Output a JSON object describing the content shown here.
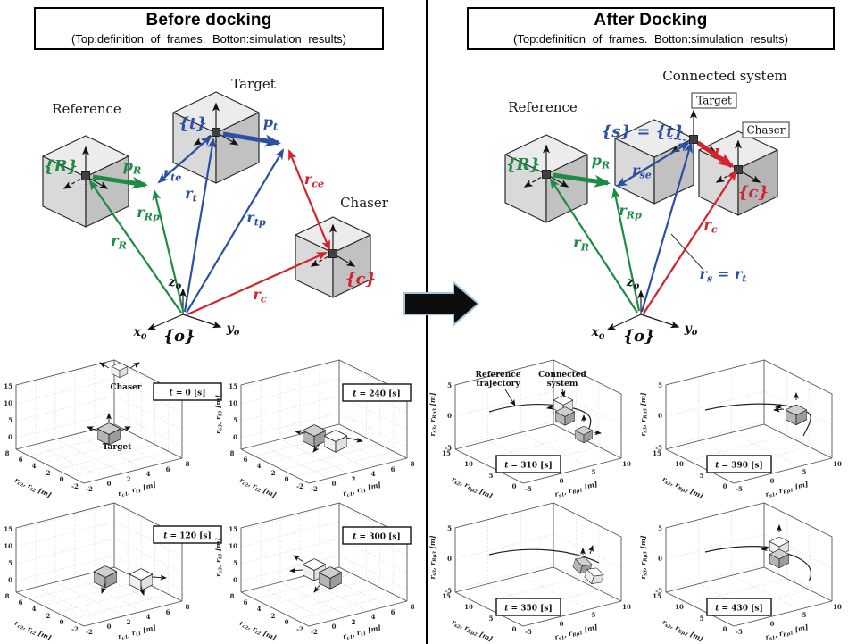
{
  "colors": {
    "green": "#1e8b45",
    "blue": "#2b4fa3",
    "red": "#d5222b",
    "arrow_fill": "#0d0d0d",
    "arrow_outline": "#a9c4d8"
  },
  "left": {
    "title": "Before docking",
    "subtitle": "(Top:definition of frames. Botton:simulation results)",
    "diagram": {
      "reference": "Reference",
      "target": "Target",
      "chaser": "Chaser",
      "frame_R": "{R}",
      "frame_t": "{t}",
      "frame_c": "{c}",
      "frame_o": "{o}",
      "pR": [
        {
          "t": "p"
        },
        {
          "t": "R",
          "sub": true
        }
      ],
      "rRp": [
        {
          "t": "r"
        },
        {
          "t": "Rp",
          "sub": true
        }
      ],
      "rR": [
        {
          "t": "r"
        },
        {
          "t": "R",
          "sub": true
        }
      ],
      "pt": [
        {
          "t": "p"
        },
        {
          "t": "t",
          "sub": true
        }
      ],
      "rte": [
        {
          "t": "r"
        },
        {
          "t": "te",
          "sub": true
        }
      ],
      "rt": [
        {
          "t": "r"
        },
        {
          "t": "t",
          "sub": true
        }
      ],
      "rtp": [
        {
          "t": "r"
        },
        {
          "t": "tp",
          "sub": true
        }
      ],
      "rce": [
        {
          "t": "r"
        },
        {
          "t": "ce",
          "sub": true
        }
      ],
      "rc": [
        {
          "t": "r"
        },
        {
          "t": "c",
          "sub": true
        }
      ],
      "xo": [
        {
          "t": "x",
          "i": true
        },
        {
          "t": "o",
          "sub": true
        }
      ],
      "yo": [
        {
          "t": "y",
          "i": true
        },
        {
          "t": "o",
          "sub": true
        }
      ],
      "zo": [
        {
          "t": "z",
          "i": true
        },
        {
          "t": "o",
          "sub": true
        }
      ]
    },
    "axes": {
      "zticks": [
        "15",
        "10",
        "5",
        "0"
      ],
      "yticks": [
        "8",
        "6",
        "4",
        "2",
        "0",
        "-2"
      ],
      "xticks": [
        "-2",
        "0",
        "2",
        "4",
        "6",
        "8"
      ],
      "zlabel": [
        {
          "t": "r"
        },
        {
          "t": "c3",
          "sub": true
        },
        {
          "t": ", "
        },
        {
          "t": "r"
        },
        {
          "t": "t3",
          "sub": true
        },
        {
          "t": " [m]"
        }
      ],
      "ylabel": [
        {
          "t": "r"
        },
        {
          "t": "c2",
          "sub": true
        },
        {
          "t": ", "
        },
        {
          "t": "r"
        },
        {
          "t": "t2",
          "sub": true
        },
        {
          "t": " [m]"
        }
      ],
      "xlabel": [
        {
          "t": "r"
        },
        {
          "t": "c1",
          "sub": true
        },
        {
          "t": ", "
        },
        {
          "t": "r"
        },
        {
          "t": "t1",
          "sub": true
        },
        {
          "t": " [m]"
        }
      ]
    },
    "plots": [
      {
        "time": [
          {
            "t": "t",
            "i": true
          },
          {
            "t": " = 0 [s]"
          }
        ],
        "ann": [
          "Chaser",
          "Target"
        ]
      },
      {
        "time": [
          {
            "t": "t",
            "i": true
          },
          {
            "t": " = 240 [s]"
          }
        ]
      },
      {
        "time": [
          {
            "t": "t",
            "i": true
          },
          {
            "t": " = 120 [s]"
          }
        ]
      },
      {
        "time": [
          {
            "t": "t",
            "i": true
          },
          {
            "t": " = 300 [s]"
          }
        ]
      }
    ]
  },
  "right": {
    "title": "After Docking",
    "subtitle": "(Top:definition of frames. Botton:simulation results)",
    "diagram": {
      "connected": "Connected system",
      "reference": "Reference",
      "target_box": "Target",
      "chaser_box": "Chaser",
      "frame_R": "{R}",
      "frame_st": "{s} = {t}",
      "frame_c": "{c}",
      "frame_o": "{o}",
      "pR": [
        {
          "t": "p"
        },
        {
          "t": "R",
          "sub": true
        }
      ],
      "rse": [
        {
          "t": "r"
        },
        {
          "t": "se",
          "sub": true
        }
      ],
      "ls": [
        {
          "t": "l"
        },
        {
          "t": "s",
          "sub": true
        }
      ],
      "rRp": [
        {
          "t": "r"
        },
        {
          "t": "Rp",
          "sub": true
        }
      ],
      "rR": [
        {
          "t": "r"
        },
        {
          "t": "R",
          "sub": true
        }
      ],
      "rc": [
        {
          "t": "r"
        },
        {
          "t": "c",
          "sub": true
        }
      ],
      "rs_rt": [
        {
          "t": "r"
        },
        {
          "t": "s",
          "sub": true
        },
        {
          "t": " = "
        },
        {
          "t": "r"
        },
        {
          "t": "t",
          "sub": true
        }
      ],
      "xo": [
        {
          "t": "x",
          "i": true
        },
        {
          "t": "o",
          "sub": true
        }
      ],
      "yo": [
        {
          "t": "y",
          "i": true
        },
        {
          "t": "o",
          "sub": true
        }
      ],
      "zo": [
        {
          "t": "z",
          "i": true
        },
        {
          "t": "o",
          "sub": true
        }
      ]
    },
    "axes": {
      "zticks": [
        "5",
        "0",
        "-5"
      ],
      "yticks": [
        "15",
        "10",
        "5",
        "0"
      ],
      "xticks": [
        "-5",
        "0",
        "5",
        "10"
      ],
      "zlabel": [
        {
          "t": "r"
        },
        {
          "t": "s3",
          "sub": true
        },
        {
          "t": ", "
        },
        {
          "t": "r"
        },
        {
          "t": "Rp3",
          "sub": true
        },
        {
          "t": " [m]"
        }
      ],
      "ylabel": [
        {
          "t": "r"
        },
        {
          "t": "s2",
          "sub": true
        },
        {
          "t": ", "
        },
        {
          "t": "r"
        },
        {
          "t": "Rp2",
          "sub": true
        },
        {
          "t": " [m]"
        }
      ],
      "xlabel": [
        {
          "t": "r"
        },
        {
          "t": "s1",
          "sub": true
        },
        {
          "t": ", "
        },
        {
          "t": "r"
        },
        {
          "t": "Rp1",
          "sub": true
        },
        {
          "t": " [m]"
        }
      ]
    },
    "plots": [
      {
        "time": [
          {
            "t": "t",
            "i": true
          },
          {
            "t": " = 310 [s]"
          }
        ],
        "ann1": [
          "Reference",
          "trajectory"
        ],
        "ann2": [
          "Connected",
          "system"
        ]
      },
      {
        "time": [
          {
            "t": "t",
            "i": true
          },
          {
            "t": " = 390 [s]"
          }
        ]
      },
      {
        "time": [
          {
            "t": "t",
            "i": true
          },
          {
            "t": " = 350 [s]"
          }
        ]
      },
      {
        "time": [
          {
            "t": "t",
            "i": true
          },
          {
            "t": " = 430 [s]"
          }
        ]
      }
    ]
  },
  "chart_data": [
    {
      "type": "3d-scene",
      "panel": "before docking",
      "time_label": "t = 0 [s]",
      "xlabel": "r_c1, r_t1 [m]",
      "ylabel": "r_c2, r_t2 [m]",
      "zlabel": "r_c3, r_t3 [m]",
      "xticks": [
        -2,
        0,
        2,
        4,
        6,
        8
      ],
      "yticks": [
        8,
        6,
        4,
        2,
        0,
        -2
      ],
      "zticks": [
        0,
        5,
        10,
        15
      ],
      "objects": [
        "Chaser cube free-flying above",
        "Target cube below near origin"
      ]
    },
    {
      "type": "3d-scene",
      "panel": "before docking",
      "time_label": "t = 240 [s]",
      "xlabel": "r_c1, r_t1 [m]",
      "ylabel": "r_c2, r_t2 [m]",
      "zlabel": "r_c3, r_t3 [m]",
      "xticks": [
        -2,
        0,
        2,
        4,
        6,
        8
      ],
      "yticks": [
        8,
        6,
        4,
        2,
        0,
        -2
      ],
      "zticks": [
        0,
        5,
        10,
        15
      ],
      "objects": [
        "Chaser and Target docked side by side near origin"
      ]
    },
    {
      "type": "3d-scene",
      "panel": "before docking",
      "time_label": "t = 120 [s]",
      "xlabel": "r_c1, r_t1 [m]",
      "ylabel": "r_c2, r_t2 [m]",
      "zlabel": "r_c3, r_t3 [m]",
      "xticks": [
        -2,
        0,
        2,
        4,
        6,
        8
      ],
      "yticks": [
        8,
        6,
        4,
        2,
        0,
        -2
      ],
      "zticks": [
        0,
        5,
        10,
        15
      ],
      "objects": [
        "Chaser approaching Target, small separation"
      ]
    },
    {
      "type": "3d-scene",
      "panel": "before docking",
      "time_label": "t = 300 [s]",
      "xlabel": "r_c1, r_t1 [m]",
      "ylabel": "r_c2, r_t2 [m]",
      "zlabel": "r_c3, r_t3 [m]",
      "xticks": [
        -2,
        0,
        2,
        4,
        6,
        8
      ],
      "yticks": [
        8,
        6,
        4,
        2,
        0,
        -2
      ],
      "zticks": [
        0,
        5,
        10,
        15
      ],
      "objects": [
        "Docked pair near origin"
      ]
    },
    {
      "type": "3d-scene",
      "panel": "after docking",
      "time_label": "t = 310 [s]",
      "xlabel": "r_s1, r_Rp1 [m]",
      "ylabel": "r_s2, r_Rp2 [m]",
      "zlabel": "r_s3, r_Rp3 [m]",
      "xticks": [
        -5,
        0,
        5,
        10
      ],
      "yticks": [
        15,
        10,
        5,
        0
      ],
      "zticks": [
        -5,
        0,
        5
      ],
      "objects": [
        "Reference trajectory curve",
        "Connected system (stacked cubes)",
        "Reference cube"
      ]
    },
    {
      "type": "3d-scene",
      "panel": "after docking",
      "time_label": "t = 390 [s]",
      "xlabel": "r_s1, r_Rp1 [m]",
      "ylabel": "r_s2, r_Rp2 [m]",
      "zlabel": "r_s3, r_Rp3 [m]",
      "xticks": [
        -5,
        0,
        5,
        10
      ],
      "yticks": [
        15,
        10,
        5,
        0
      ],
      "zticks": [
        -5,
        0,
        5
      ],
      "objects": [
        "Connected system on reference trajectory"
      ]
    },
    {
      "type": "3d-scene",
      "panel": "after docking",
      "time_label": "t = 350 [s]",
      "xlabel": "r_s1, r_Rp1 [m]",
      "ylabel": "r_s2, r_Rp2 [m]",
      "zlabel": "r_s3, r_Rp3 [m]",
      "xticks": [
        -5,
        0,
        5,
        10
      ],
      "yticks": [
        15,
        10,
        5,
        0
      ],
      "zticks": [
        -5,
        0,
        5
      ],
      "objects": [
        "Tilted connected system at right end of trajectory"
      ]
    },
    {
      "type": "3d-scene",
      "panel": "after docking",
      "time_label": "t = 430 [s]",
      "xlabel": "r_s1, r_Rp1 [m]",
      "ylabel": "r_s2, r_Rp2 [m]",
      "zlabel": "r_s3, r_Rp3 [m]",
      "xticks": [
        -5,
        0,
        5,
        10
      ],
      "yticks": [
        15,
        10,
        5,
        0
      ],
      "zticks": [
        -5,
        0,
        5
      ],
      "objects": [
        "Upright connected system on curving trajectory"
      ]
    }
  ]
}
